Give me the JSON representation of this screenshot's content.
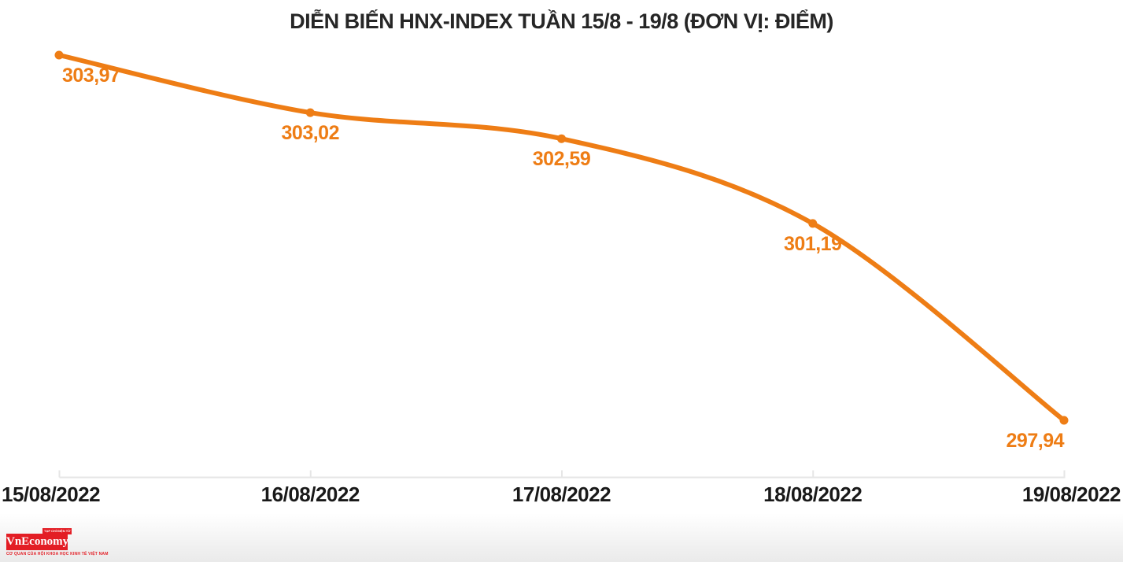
{
  "chart_data": {
    "type": "line",
    "title": "DIỄN BIẾN HNX-INDEX TUẦN 15/8 - 19/8 (ĐƠN VỊ: ĐIỂM)",
    "categories": [
      "15/08/2022",
      "16/08/2022",
      "17/08/2022",
      "18/08/2022",
      "19/08/2022"
    ],
    "series": [
      {
        "name": "HNX-Index",
        "values": [
          303.97,
          303.02,
          302.59,
          301.19,
          297.94
        ]
      }
    ],
    "point_labels": [
      "303,97",
      "303,02",
      "302,59",
      "301,19",
      "297,94"
    ],
    "unit": "ĐIỂM",
    "ylim": [
      297.94,
      303.97
    ],
    "grid": false,
    "legend": false,
    "line_color": "#ee7d15",
    "marker_color": "#ee7d15",
    "point_label_color": "#ee7d15",
    "axis_color": "#e6e6e6",
    "title_color": "#262626",
    "xlabel_color": "#191919"
  },
  "footer": {
    "logo": {
      "tab_text": "TẠP CHÍ ĐIỆN TỬ",
      "name": "VnEconomy",
      "tagline": "CƠ QUAN CỦA HỘI KHOA HỌC KINH TẾ VIỆT NAM",
      "brand_color": "#e31e25"
    }
  }
}
